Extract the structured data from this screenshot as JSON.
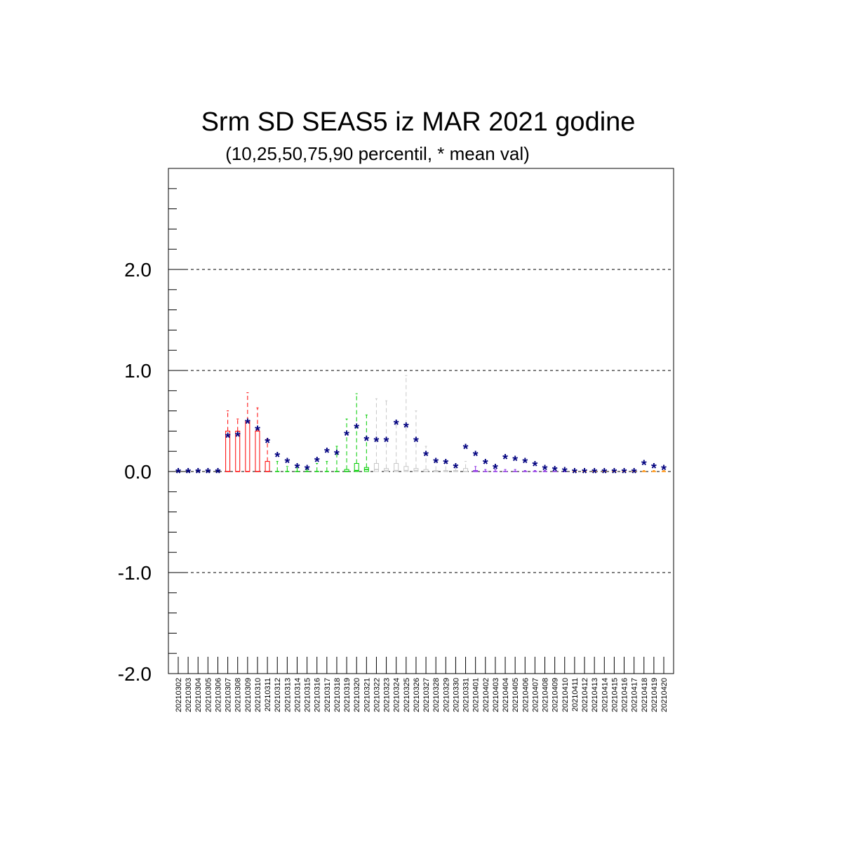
{
  "chart_data": {
    "type": "boxplot",
    "title": "Srm SD SEAS5 iz MAR 2021 godine",
    "subtitle": "(10,25,50,75,90 percentil, * mean val)",
    "ylim": [
      -2.0,
      3.0
    ],
    "yticks": [
      "2.0",
      "1.0",
      "0.0",
      "-1.0",
      "-2.0"
    ],
    "ytick_values": [
      2.0,
      1.0,
      0.0,
      -1.0,
      -2.0
    ],
    "grid": "dashed horizontal at major ticks",
    "mean_marker": "*",
    "mean_color": "#00007f",
    "categories": [
      "20210302",
      "20210303",
      "20210304",
      "20210305",
      "20210306",
      "20210307",
      "20210308",
      "20210309",
      "20210310",
      "20210311",
      "20210312",
      "20210313",
      "20210314",
      "20210315",
      "20210316",
      "20210317",
      "20210318",
      "20210319",
      "20210320",
      "20210321",
      "20210322",
      "20210323",
      "20210324",
      "20210325",
      "20210326",
      "20210327",
      "20210328",
      "20210329",
      "20210330",
      "20210331",
      "20210401",
      "20210402",
      "20210403",
      "20210404",
      "20210405",
      "20210406",
      "20210407",
      "20210408",
      "20210409",
      "20210410",
      "20210411",
      "20210412",
      "20210413",
      "20210414",
      "20210415",
      "20210416",
      "20210417",
      "20210418",
      "20210419",
      "20210420"
    ],
    "colors": [
      "#000000",
      "#000000",
      "#000000",
      "#000000",
      "#000000",
      "#ff0000",
      "#ff0000",
      "#ff0000",
      "#ff0000",
      "#ff0000",
      "#00cc00",
      "#00cc00",
      "#00cc00",
      "#00cc00",
      "#00cc00",
      "#00cc00",
      "#00cc00",
      "#00cc00",
      "#00cc00",
      "#00cc00",
      "#c8c8c8",
      "#c8c8c8",
      "#c8c8c8",
      "#c8c8c8",
      "#c8c8c8",
      "#c8c8c8",
      "#c8c8c8",
      "#c8c8c8",
      "#c8c8c8",
      "#c8c8c8",
      "#8a2be2",
      "#8a2be2",
      "#8a2be2",
      "#8a2be2",
      "#8a2be2",
      "#8a2be2",
      "#8a2be2",
      "#8a2be2",
      "#8a2be2",
      "#8a2be2",
      "#ff8c00",
      "#ff8c00",
      "#ff8c00",
      "#ff8c00",
      "#ff8c00",
      "#ff8c00",
      "#ff8c00",
      "#ff8c00",
      "#ff8c00",
      "#ff8c00"
    ],
    "p10": [
      0,
      0,
      0,
      0,
      0,
      0,
      0,
      0,
      0,
      0,
      0,
      0,
      0,
      0,
      0,
      0,
      0,
      0,
      0,
      0,
      0,
      0,
      0,
      0,
      0,
      0,
      0,
      0,
      0,
      0,
      0,
      0,
      0,
      0,
      0,
      0,
      0,
      0,
      0,
      0,
      0,
      0,
      0,
      0,
      0,
      0,
      0,
      0,
      0,
      0
    ],
    "p25": [
      0,
      0,
      0,
      0,
      0,
      0,
      0,
      0,
      0,
      0,
      0,
      0,
      0,
      0,
      0,
      0,
      0,
      0,
      0,
      0,
      0,
      0,
      0,
      0,
      0,
      0,
      0,
      0,
      0,
      0,
      0,
      0,
      0,
      0,
      0,
      0,
      0,
      0,
      0,
      0,
      0,
      0,
      0,
      0,
      0,
      0,
      0,
      0,
      0,
      0
    ],
    "p50": [
      0,
      0,
      0,
      0,
      0,
      0,
      0,
      0,
      0,
      0,
      0,
      0,
      0,
      0,
      0,
      0,
      0,
      0,
      0.01,
      0.02,
      0.02,
      0.01,
      0.01,
      0.01,
      0.01,
      0,
      0,
      0,
      0,
      0,
      0,
      0,
      0,
      0,
      0,
      0,
      0,
      0,
      0,
      0,
      0,
      0,
      0,
      0,
      0,
      0,
      0,
      0,
      0,
      0
    ],
    "p75": [
      0,
      0,
      0,
      0,
      0,
      0.4,
      0.4,
      0.5,
      0.4,
      0.1,
      0,
      0,
      0,
      0,
      0,
      0,
      0,
      0.02,
      0.08,
      0.04,
      0.08,
      0.03,
      0.08,
      0.05,
      0.03,
      0.02,
      0.01,
      0.01,
      0.01,
      0.03,
      0.01,
      0,
      0,
      0,
      0,
      0,
      0,
      0,
      0,
      0,
      0,
      0,
      0,
      0,
      0,
      0,
      0,
      0,
      0,
      0
    ],
    "p90": [
      0,
      0,
      0,
      0,
      0,
      0.6,
      0.52,
      0.78,
      0.63,
      0.32,
      0.1,
      0.05,
      0.05,
      0.03,
      0.08,
      0.1,
      0.25,
      0.52,
      0.77,
      0.56,
      0.72,
      0.7,
      0.48,
      0.95,
      0.6,
      0.25,
      0.1,
      0.08,
      0.05,
      0.1,
      0.05,
      0.02,
      0.02,
      0.02,
      0.02,
      0.01,
      0.01,
      0.01,
      0,
      0,
      0,
      0,
      0,
      0,
      0,
      0,
      0,
      0.01,
      0.01,
      0.01
    ],
    "mean": [
      0,
      0,
      0,
      0,
      0,
      0.35,
      0.36,
      0.49,
      0.42,
      0.3,
      0.16,
      0.1,
      0.05,
      0.03,
      0.11,
      0.2,
      0.18,
      0.37,
      0.44,
      0.32,
      0.31,
      0.31,
      0.48,
      0.45,
      0.31,
      0.17,
      0.1,
      0.09,
      0.05,
      0.24,
      0.17,
      0.09,
      0.04,
      0.14,
      0.12,
      0.1,
      0.07,
      0.03,
      0.02,
      0.01,
      0,
      0,
      0,
      0,
      0,
      0,
      0,
      0.08,
      0.05,
      0.03
    ]
  }
}
